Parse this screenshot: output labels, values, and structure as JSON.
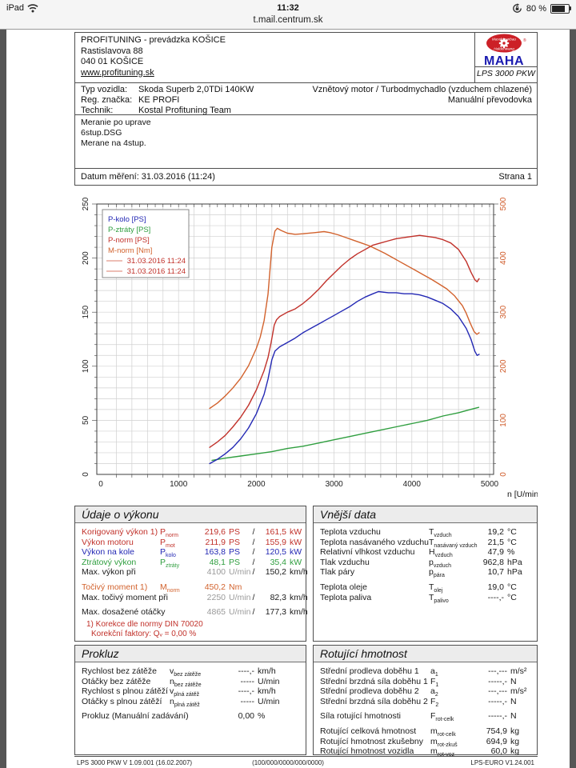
{
  "status_bar": {
    "device": "iPad",
    "time": "11:32",
    "battery_percent": "80 %"
  },
  "title_bar": {
    "url": "t.mail.centrum.sk"
  },
  "letterhead": {
    "company": "PROFITUNING - prevádzka KOŠICE",
    "address1": "Rastislavova 88",
    "address2": "040 01 KOŠICE",
    "website": "www.profituning.sk",
    "logo_word": "MAHA",
    "logo_arc_top": "Maschinenbau",
    "logo_arc_bottom": "Haldenwang",
    "logo_reg": "®",
    "logo_model": "LPS 3000 PKW"
  },
  "vehicle": {
    "rows": [
      {
        "label": "Typ vozidla:",
        "value": "Skoda Superb 2,0TDi 140KW"
      },
      {
        "label": "Reg. značka:",
        "value": "KE PROFI"
      },
      {
        "label": "Technik:",
        "value": "Kostal Profituning Team"
      }
    ],
    "right1": "Vznětový motor / Turbodmychadlo (vzduchem chlazené)",
    "right2": "Manuální převodovka"
  },
  "notes": [
    "Meranie po uprave",
    "6stup.DSG",
    "Merane na 4stup."
  ],
  "meta": {
    "date_label": "Datum měření: 31.03.2016 (11:24)",
    "page": "Strana 1"
  },
  "colors": {
    "red": "#c1312a",
    "blue": "#2328b4",
    "green": "#2f9e3f",
    "orange": "#d2622d",
    "gray_value": "#9a9a9a",
    "grid": "#d0d0d0",
    "axis": "#3c3c3c",
    "legend_run_line": "#e2988a",
    "right_axis": "#cf5a28"
  },
  "chart_data": {
    "type": "line",
    "title": "",
    "xlabel": "n [U/min]",
    "xlim": [
      0,
      5000
    ],
    "x_ticks": [
      0,
      1000,
      2000,
      3000,
      4000,
      5000
    ],
    "grid_x_step": 200,
    "grid_y_step_left": 10,
    "y_left": {
      "lim": [
        0,
        250
      ],
      "ticks": [
        0,
        50,
        100,
        150,
        200,
        250
      ]
    },
    "y_right": {
      "lim": [
        0,
        500
      ],
      "ticks": [
        0,
        100,
        200,
        300,
        400,
        500
      ]
    },
    "legend": [
      {
        "label": "P-kolo [PS]",
        "color": "blue"
      },
      {
        "label": "P-ztráty [PS]",
        "color": "green"
      },
      {
        "label": "P-norm [PS]",
        "color": "red"
      },
      {
        "label": "M-norm [Nm]",
        "color": "orange"
      }
    ],
    "legend_runs": [
      {
        "label": "31.03.2016 11:24"
      },
      {
        "label": "31.03.2016 11:24"
      }
    ],
    "series": [
      {
        "name": "P-ztráty [PS]",
        "axis": "left",
        "color": "green",
        "points": [
          [
            1430,
            13
          ],
          [
            1600,
            15
          ],
          [
            1800,
            17
          ],
          [
            2000,
            19
          ],
          [
            2200,
            21
          ],
          [
            2400,
            24
          ],
          [
            2600,
            26
          ],
          [
            2800,
            29
          ],
          [
            3000,
            32
          ],
          [
            3200,
            35
          ],
          [
            3400,
            38
          ],
          [
            3600,
            41
          ],
          [
            3800,
            44
          ],
          [
            4000,
            47
          ],
          [
            4200,
            50
          ],
          [
            4400,
            54
          ],
          [
            4600,
            57
          ],
          [
            4750,
            60
          ],
          [
            4860,
            62
          ]
        ]
      },
      {
        "name": "P-kolo [PS]",
        "axis": "left",
        "color": "blue",
        "points": [
          [
            1400,
            10
          ],
          [
            1500,
            14
          ],
          [
            1600,
            19
          ],
          [
            1700,
            25
          ],
          [
            1800,
            33
          ],
          [
            1900,
            43
          ],
          [
            2000,
            56
          ],
          [
            2100,
            74
          ],
          [
            2150,
            88
          ],
          [
            2200,
            106
          ],
          [
            2240,
            114
          ],
          [
            2300,
            118
          ],
          [
            2400,
            122
          ],
          [
            2500,
            126
          ],
          [
            2600,
            131
          ],
          [
            2700,
            135
          ],
          [
            2800,
            139
          ],
          [
            2900,
            143
          ],
          [
            3000,
            147
          ],
          [
            3100,
            151
          ],
          [
            3200,
            155
          ],
          [
            3300,
            160
          ],
          [
            3400,
            164
          ],
          [
            3500,
            167
          ],
          [
            3570,
            169
          ],
          [
            3700,
            168
          ],
          [
            3800,
            168
          ],
          [
            3900,
            167
          ],
          [
            4000,
            167
          ],
          [
            4100,
            166
          ],
          [
            4200,
            164
          ],
          [
            4300,
            161
          ],
          [
            4400,
            158
          ],
          [
            4500,
            153
          ],
          [
            4600,
            146
          ],
          [
            4700,
            135
          ],
          [
            4760,
            125
          ],
          [
            4810,
            114
          ],
          [
            4840,
            110
          ],
          [
            4865,
            111
          ]
        ]
      },
      {
        "name": "P-norm [PS]",
        "axis": "left",
        "color": "red",
        "points": [
          [
            1400,
            25
          ],
          [
            1500,
            30
          ],
          [
            1600,
            36
          ],
          [
            1700,
            44
          ],
          [
            1800,
            53
          ],
          [
            1900,
            64
          ],
          [
            2000,
            78
          ],
          [
            2100,
            96
          ],
          [
            2150,
            108
          ],
          [
            2190,
            122
          ],
          [
            2230,
            138
          ],
          [
            2260,
            143
          ],
          [
            2300,
            146
          ],
          [
            2400,
            150
          ],
          [
            2500,
            153
          ],
          [
            2600,
            158
          ],
          [
            2700,
            164
          ],
          [
            2800,
            171
          ],
          [
            2900,
            179
          ],
          [
            3000,
            186
          ],
          [
            3100,
            193
          ],
          [
            3200,
            199
          ],
          [
            3300,
            204
          ],
          [
            3400,
            208
          ],
          [
            3500,
            212
          ],
          [
            3600,
            214
          ],
          [
            3700,
            216
          ],
          [
            3800,
            218
          ],
          [
            3900,
            219
          ],
          [
            4000,
            220
          ],
          [
            4100,
            221
          ],
          [
            4200,
            220
          ],
          [
            4300,
            219
          ],
          [
            4400,
            217
          ],
          [
            4500,
            214
          ],
          [
            4600,
            208
          ],
          [
            4700,
            197
          ],
          [
            4760,
            187
          ],
          [
            4810,
            180
          ],
          [
            4840,
            178
          ],
          [
            4865,
            181
          ]
        ]
      },
      {
        "name": "M-norm [Nm]",
        "axis": "right",
        "color": "orange",
        "points": [
          [
            1400,
            122
          ],
          [
            1500,
            132
          ],
          [
            1600,
            145
          ],
          [
            1700,
            160
          ],
          [
            1800,
            178
          ],
          [
            1900,
            201
          ],
          [
            2000,
            233
          ],
          [
            2050,
            254
          ],
          [
            2100,
            284
          ],
          [
            2150,
            333
          ],
          [
            2200,
            420
          ],
          [
            2240,
            450
          ],
          [
            2270,
            455
          ],
          [
            2320,
            451
          ],
          [
            2400,
            446
          ],
          [
            2500,
            444
          ],
          [
            2600,
            445
          ],
          [
            2750,
            447
          ],
          [
            2870,
            449
          ],
          [
            2950,
            447
          ],
          [
            3050,
            443
          ],
          [
            3150,
            438
          ],
          [
            3250,
            433
          ],
          [
            3350,
            428
          ],
          [
            3450,
            423
          ],
          [
            3550,
            416
          ],
          [
            3650,
            409
          ],
          [
            3750,
            401
          ],
          [
            3850,
            393
          ],
          [
            3950,
            385
          ],
          [
            4050,
            377
          ],
          [
            4150,
            369
          ],
          [
            4250,
            361
          ],
          [
            4350,
            352
          ],
          [
            4450,
            343
          ],
          [
            4550,
            330
          ],
          [
            4650,
            312
          ],
          [
            4700,
            298
          ],
          [
            4750,
            280
          ],
          [
            4800,
            264
          ],
          [
            4835,
            259
          ],
          [
            4865,
            262
          ]
        ]
      }
    ]
  },
  "tables": {
    "perf": {
      "title": "Údaje o výkonu",
      "rows": [
        {
          "label": "Korigovaný výkon 1)",
          "sym": "P",
          "sub": "norm",
          "v1": "219,6",
          "u1": "PS",
          "slash": "/",
          "v2": "161,5",
          "u2": "kW",
          "color": "red"
        },
        {
          "label": "Výkon motoru",
          "sym": "P",
          "sub": "mot",
          "v1": "211,9",
          "u1": "PS",
          "slash": "/",
          "v2": "155,9",
          "u2": "kW",
          "color": "red"
        },
        {
          "label": "Výkon na kole",
          "sym": "P",
          "sub": "kolo",
          "v1": "163,8",
          "u1": "PS",
          "slash": "/",
          "v2": "120,5",
          "u2": "kW",
          "color": "blue"
        },
        {
          "label": "Ztrátový výkon",
          "sym": "P",
          "sub": "ztráty",
          "v1": "48,1",
          "u1": "PS",
          "slash": "/",
          "v2": "35,4",
          "u2": "kW",
          "color": "green"
        },
        {
          "label": "Max. výkon při",
          "sym": "",
          "sub": "",
          "v1": "4100",
          "u1": "U/min",
          "slash": "/",
          "v2": "150,2",
          "u2": "km/h",
          "color": "black",
          "v1_gray": true
        },
        {
          "gap": true
        },
        {
          "label": "Točivý moment 1)",
          "sym": "M",
          "sub": "norm",
          "v1": "450,2",
          "u1": "Nm",
          "slash": "",
          "v2": "",
          "u2": "",
          "color": "orange"
        },
        {
          "label": "Max. točivý moment při",
          "sym": "",
          "sub": "",
          "v1": "2250",
          "u1": "U/min",
          "slash": "/",
          "v2": "82,3",
          "u2": "km/h",
          "color": "black",
          "v1_gray": true
        },
        {
          "gap": true
        },
        {
          "label": "Max. dosažené otáčky",
          "sym": "",
          "sub": "",
          "v1": "4865",
          "u1": "U/min",
          "slash": "/",
          "v2": "177,3",
          "u2": "km/h",
          "color": "black",
          "v1_gray": true
        }
      ],
      "footnote1": "1) Korekce dle normy DIN 70020",
      "footnote2": "Korekční faktory: Qᵥ =   0,00 %"
    },
    "env": {
      "title": "Vnější data",
      "rows": [
        {
          "label": "Teplota vzduchu",
          "sym": "T",
          "sub": "vzduch",
          "value": "19,2",
          "unit": "°C"
        },
        {
          "label": "Teplota nasávaného vzduchu",
          "sym": "T",
          "sub": "nasávaný vzduch",
          "value": "21,5",
          "unit": "°C"
        },
        {
          "label": "Relativní vlhkost vzduchu",
          "sym": "H",
          "sub": "vzduch",
          "value": "47,9",
          "unit": "%"
        },
        {
          "label": "Tlak vzduchu",
          "sym": "p",
          "sub": "vzduch",
          "value": "962,8",
          "unit": "hPa"
        },
        {
          "label": "Tlak páry",
          "sym": "p",
          "sub": "pára",
          "value": "10,7",
          "unit": "hPa"
        },
        {
          "gap": true
        },
        {
          "label": "Teplota oleje",
          "sym": "T",
          "sub": "olej",
          "value": "19,0",
          "unit": "°C"
        },
        {
          "label": "Teplota paliva",
          "sym": "T",
          "sub": "palivo",
          "value": "----,-",
          "unit": "°C"
        }
      ]
    },
    "slip": {
      "title": "Prokluz",
      "rows": [
        {
          "label": "Rychlost bez zátěže",
          "sym": "v",
          "sub": "bez zátěže",
          "value": "----,-",
          "unit": "km/h"
        },
        {
          "label": "Otáčky bez zátěže",
          "sym": "n",
          "sub": "bez zátěže",
          "value": "-----",
          "unit": "U/min"
        },
        {
          "label": "Rychlost s plnou zátěží",
          "sym": "v",
          "sub": "plná zátěž",
          "value": "----,-",
          "unit": "km/h"
        },
        {
          "label": "Otáčky s plnou zátěží",
          "sym": "n",
          "sub": "plná zátěž",
          "value": "-----",
          "unit": "U/min"
        },
        {
          "gap": true
        },
        {
          "label": "Prokluz (Manuální zadávání)",
          "sym": "",
          "sub": "",
          "value": "0,00",
          "unit": "%"
        }
      ]
    },
    "rot": {
      "title": "Rotující hmotnost",
      "rows": [
        {
          "label": "Střední prodleva doběhu 1",
          "sym": "a",
          "sub": "1",
          "value": "---,---",
          "unit": "m/s²"
        },
        {
          "label": "Střední brzdná síla doběhu 1",
          "sym": "F",
          "sub": "1",
          "value": "-----,-",
          "unit": "N"
        },
        {
          "label": "Střední prodleva doběhu 2",
          "sym": "a",
          "sub": "2",
          "value": "---,---",
          "unit": "m/s²"
        },
        {
          "label": "Střední brzdná síla doběhu 2",
          "sym": "F",
          "sub": "2",
          "value": "-----,-",
          "unit": "N"
        },
        {
          "gap": true
        },
        {
          "label": "Síla rotující hmotnosti",
          "sym": "F",
          "sub": "rot-celk",
          "value": "-----,-",
          "unit": "N"
        },
        {
          "gap": true
        },
        {
          "label": "Rotující celková hmotnost",
          "sym": "m",
          "sub": "rot-celk",
          "value": "754,9",
          "unit": "kg"
        },
        {
          "label": "Rotující hmotnost zkušebny",
          "sym": "m",
          "sub": "rot-zkuš",
          "value": "694,9",
          "unit": "kg"
        },
        {
          "label": "Rotující hmotnost vozidla",
          "sym": "m",
          "sub": "rot-voz",
          "value": "60,0",
          "unit": "kg"
        }
      ]
    }
  },
  "footer": {
    "left": "LPS 3000 PKW V 1.09.001 (16.02.2007)",
    "center": "(100/000/0000/000/0000)",
    "right": "LPS-EURO V1.24.001"
  }
}
